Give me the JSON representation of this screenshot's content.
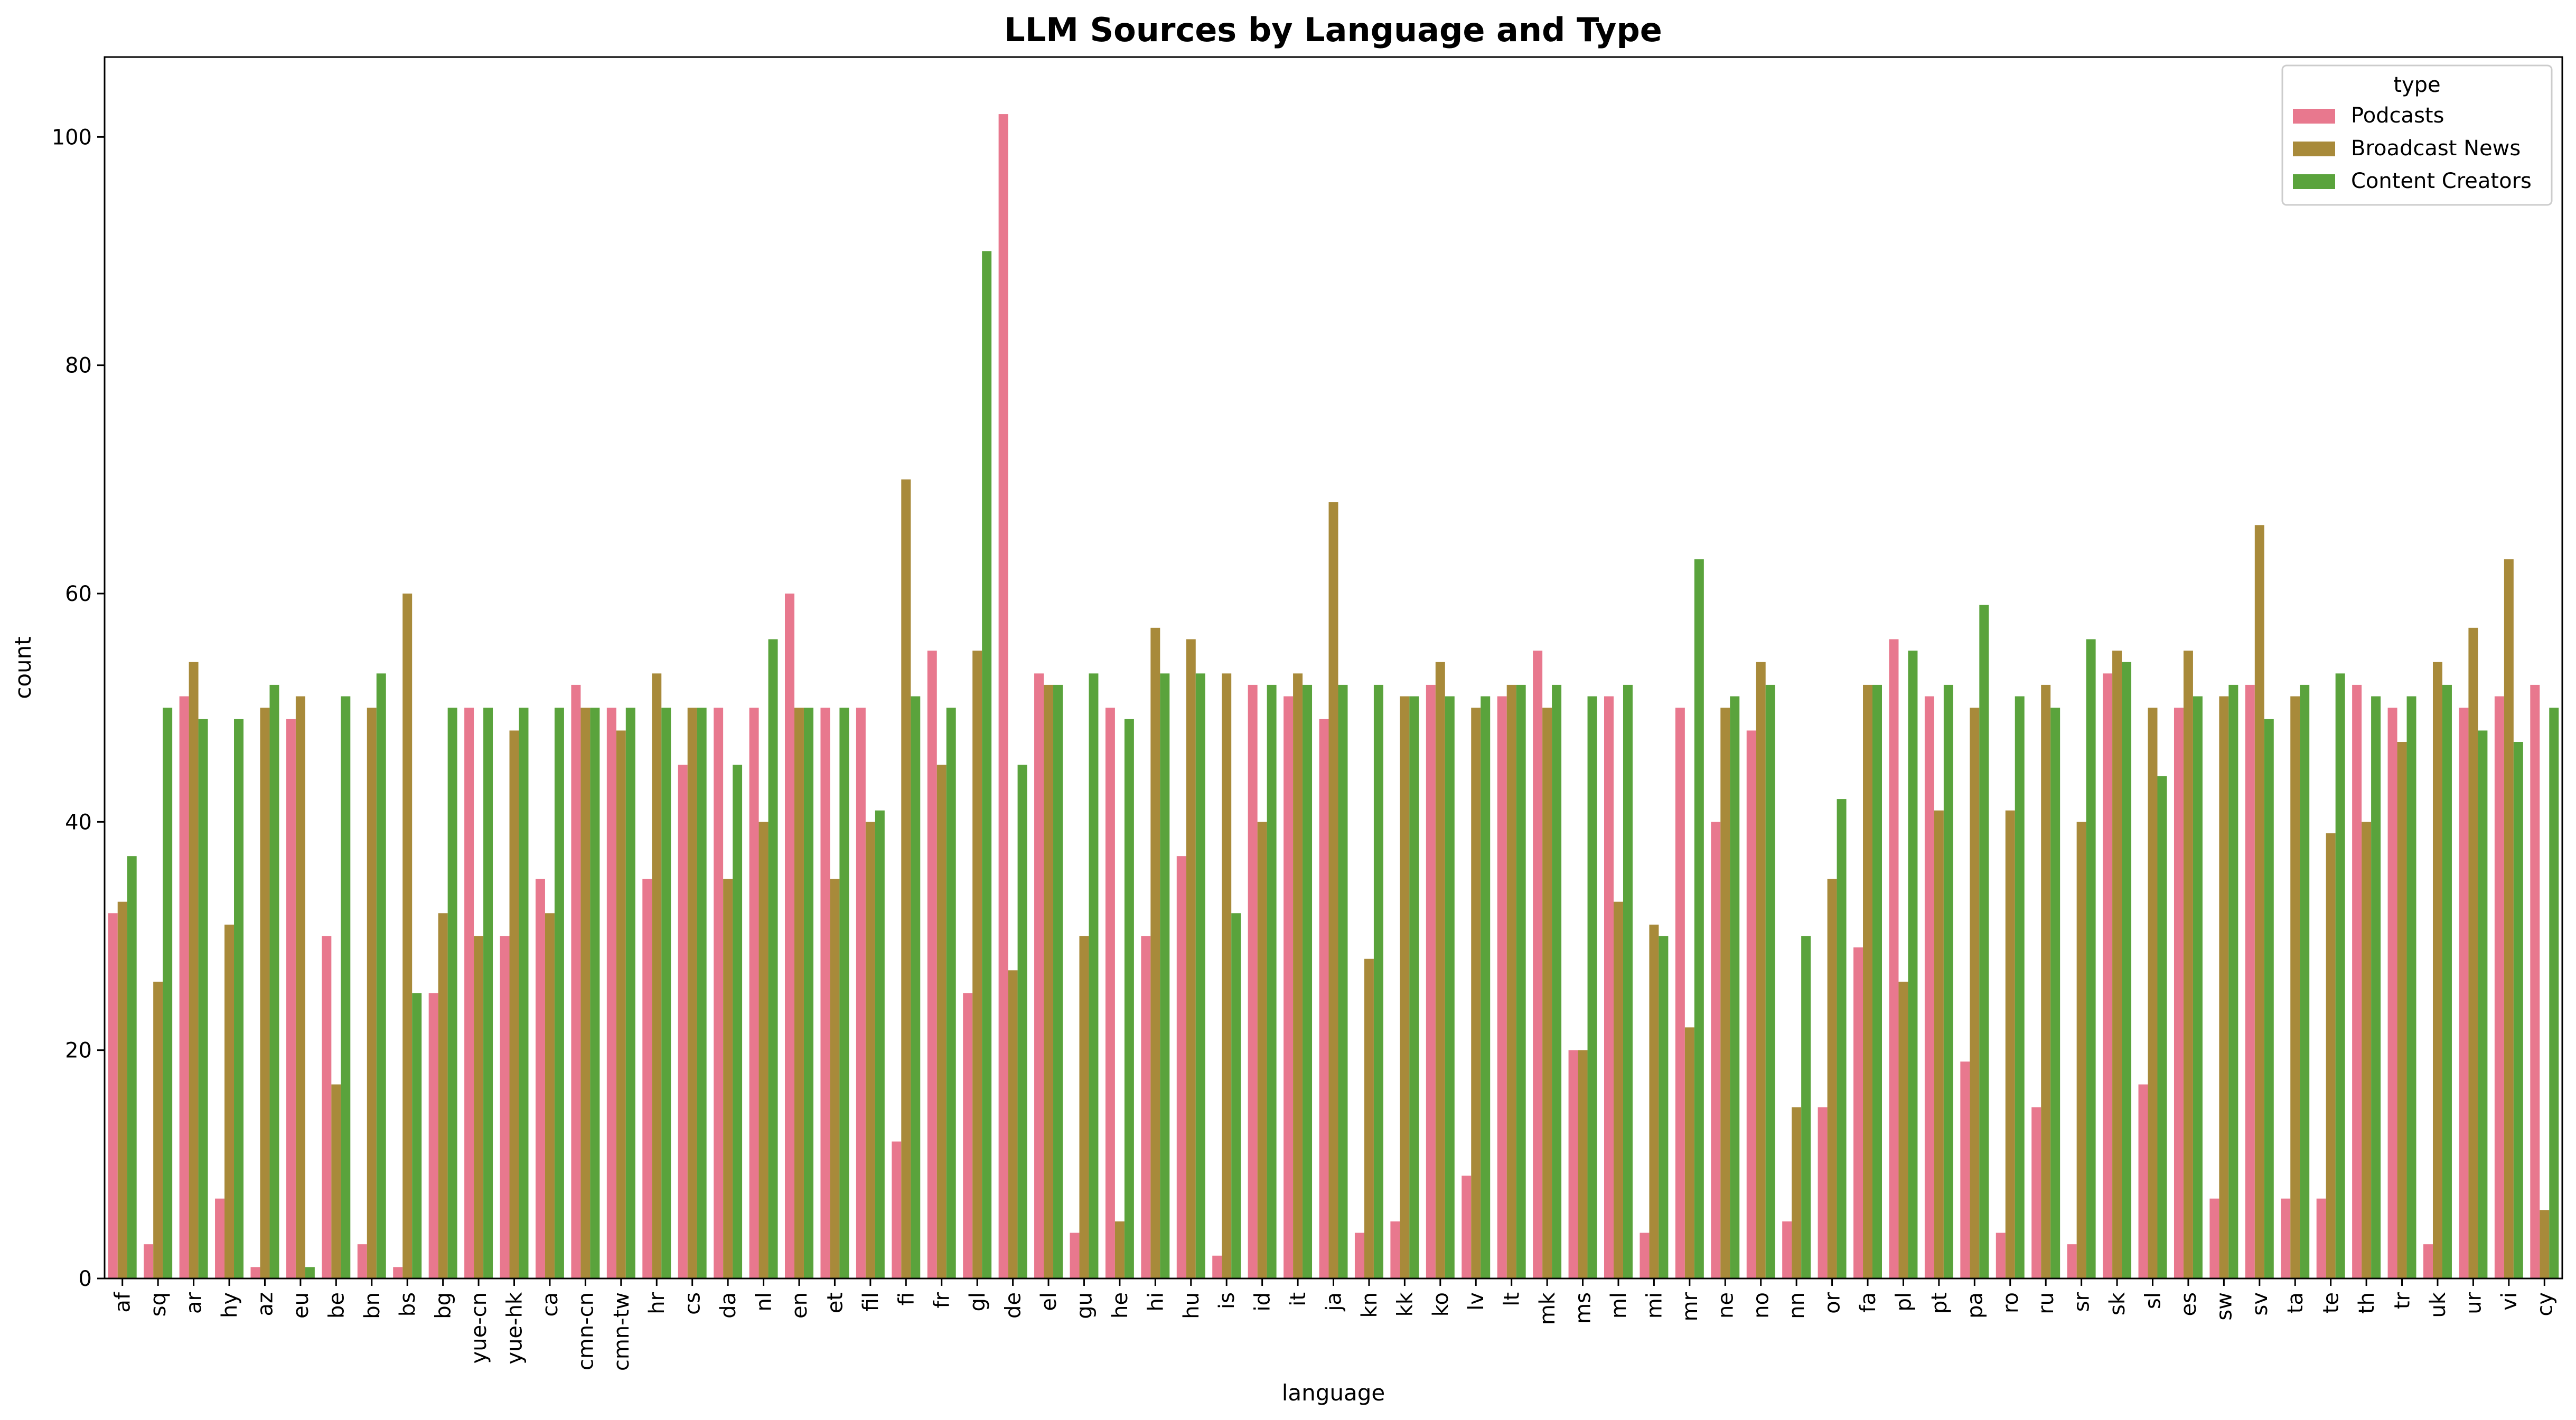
{
  "chart_data": {
    "type": "bar",
    "title": "LLM Sources by Language and Type",
    "xlabel": "language",
    "ylabel": "count",
    "ylim": [
      0,
      107
    ],
    "yticks": [
      0,
      20,
      40,
      60,
      80,
      100
    ],
    "grid": false,
    "legend": {
      "title": "type",
      "placement": "top-right"
    },
    "categories": [
      "af",
      "sq",
      "ar",
      "hy",
      "az",
      "eu",
      "be",
      "bn",
      "bs",
      "bg",
      "yue-cn",
      "yue-hk",
      "ca",
      "cmn-cn",
      "cmn-tw",
      "hr",
      "cs",
      "da",
      "nl",
      "en",
      "et",
      "fil",
      "fi",
      "fr",
      "gl",
      "de",
      "el",
      "gu",
      "he",
      "hi",
      "hu",
      "is",
      "id",
      "it",
      "ja",
      "kn",
      "kk",
      "ko",
      "lv",
      "lt",
      "mk",
      "ms",
      "ml",
      "mi",
      "mr",
      "ne",
      "no",
      "nn",
      "or",
      "fa",
      "pl",
      "pt",
      "pa",
      "ro",
      "ru",
      "sr",
      "sk",
      "sl",
      "es",
      "sw",
      "sv",
      "ta",
      "te",
      "th",
      "tr",
      "uk",
      "ur",
      "vi",
      "cy"
    ],
    "series": [
      {
        "name": "Podcasts",
        "color": "#e8788e",
        "values": [
          32,
          3,
          51,
          7,
          1,
          49,
          30,
          3,
          1,
          25,
          50,
          30,
          35,
          52,
          50,
          35,
          45,
          50,
          50,
          60,
          50,
          50,
          12,
          55,
          25,
          102,
          53,
          4,
          50,
          30,
          37,
          2,
          52,
          51,
          49,
          4,
          5,
          52,
          9,
          51,
          55,
          20,
          51,
          4,
          50,
          40,
          48,
          5,
          15,
          29,
          56,
          51,
          19,
          4,
          15,
          3,
          53,
          17,
          50,
          7,
          52,
          7,
          7,
          52,
          50,
          3,
          50,
          51,
          52
        ]
      },
      {
        "name": "Broadcast News",
        "color": "#a88a3a",
        "values": [
          33,
          26,
          54,
          31,
          50,
          51,
          17,
          50,
          60,
          32,
          30,
          48,
          32,
          50,
          48,
          53,
          50,
          35,
          40,
          50,
          35,
          40,
          70,
          45,
          55,
          27,
          52,
          30,
          5,
          57,
          56,
          53,
          40,
          53,
          68,
          28,
          51,
          54,
          50,
          52,
          50,
          20,
          33,
          31,
          22,
          50,
          54,
          15,
          35,
          52,
          26,
          41,
          50,
          41,
          52,
          40,
          55,
          50,
          55,
          51,
          66,
          51,
          39,
          40,
          47,
          54,
          57,
          63,
          6
        ]
      },
      {
        "name": "Content Creators",
        "color": "#5aa33c",
        "values": [
          37,
          50,
          49,
          49,
          52,
          1,
          51,
          53,
          25,
          50,
          50,
          50,
          50,
          50,
          50,
          50,
          50,
          45,
          56,
          50,
          50,
          41,
          51,
          50,
          90,
          45,
          52,
          53,
          49,
          53,
          53,
          32,
          52,
          52,
          52,
          52,
          51,
          51,
          51,
          52,
          52,
          51,
          52,
          30,
          63,
          51,
          52,
          30,
          42,
          52,
          55,
          52,
          59,
          51,
          50,
          56,
          54,
          44,
          51,
          52,
          49,
          52,
          53,
          51,
          51,
          52,
          48,
          47,
          50
        ]
      }
    ]
  }
}
